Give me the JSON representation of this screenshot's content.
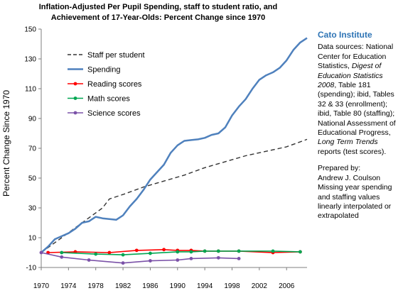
{
  "chart_data": {
    "type": "line",
    "title_lines": [
      "Inflation-Adjusted Per Pupil Spending, staff to student ratio, and",
      "Achievement of 17-Year-Olds:  Percent Change since 1970"
    ],
    "ylabel": "Percent Change Since 1970",
    "xlabel": "",
    "xlim": [
      1970,
      2009
    ],
    "ylim": [
      -10,
      150
    ],
    "x_ticks": [
      1970,
      1974,
      1978,
      1982,
      1986,
      1990,
      1994,
      1998,
      2002,
      2006
    ],
    "y_ticks": [
      -10,
      10,
      30,
      50,
      70,
      90,
      110,
      130,
      150
    ],
    "grid": false,
    "legend_placement": "top-left",
    "series": [
      {
        "name": "Staff per student",
        "color": "#333333",
        "dash": true,
        "marker": "none",
        "x": [
          1970,
          1973,
          1976,
          1979,
          1980,
          1982,
          1985,
          1988,
          1991,
          1994,
          1997,
          2000,
          2003,
          2006,
          2009
        ],
        "y": [
          0,
          10,
          20,
          30,
          36,
          39,
          44,
          48,
          52,
          57,
          61,
          65,
          68,
          71,
          76
        ]
      },
      {
        "name": "Spending",
        "color": "#4f81bd",
        "dash": false,
        "marker": "none",
        "x": [
          1970,
          1971,
          1972,
          1973,
          1974,
          1975,
          1976,
          1977,
          1978,
          1979,
          1980,
          1981,
          1982,
          1983,
          1984,
          1985,
          1986,
          1987,
          1988,
          1989,
          1990,
          1991,
          1992,
          1993,
          1994,
          1995,
          1996,
          1997,
          1998,
          1999,
          2000,
          2001,
          2002,
          2003,
          2004,
          2005,
          2006,
          2007,
          2008,
          2009
        ],
        "y": [
          0,
          4,
          9,
          11,
          13,
          16,
          20,
          21,
          24,
          23,
          22.5,
          22,
          25,
          31,
          36,
          42,
          49,
          54,
          59,
          67,
          72,
          75,
          75.5,
          76,
          77,
          79,
          80,
          84,
          92,
          98,
          103,
          110,
          116,
          119,
          121,
          124,
          129,
          136,
          141,
          144
        ]
      },
      {
        "name": "Reading scores",
        "color": "#ff0000",
        "dash": false,
        "marker": "circle",
        "x": [
          1971,
          1975,
          1980,
          1984,
          1988,
          1990,
          1992,
          1994,
          1996,
          1999,
          2004,
          2008
        ],
        "y": [
          0,
          0.5,
          0,
          1.5,
          2,
          1.5,
          1.5,
          1,
          1,
          1,
          0,
          0.5
        ]
      },
      {
        "name": "Math scores",
        "color": "#00a651",
        "dash": false,
        "marker": "circle",
        "x": [
          1973,
          1978,
          1982,
          1986,
          1990,
          1992,
          1994,
          1996,
          1999,
          2004,
          2008
        ],
        "y": [
          0,
          -1,
          -1.5,
          -0.5,
          0.5,
          0.5,
          1,
          1,
          1,
          1,
          0.5
        ]
      },
      {
        "name": "Science scores",
        "color": "#7b52a8",
        "dash": false,
        "marker": "circle",
        "x": [
          1970,
          1973,
          1977,
          1982,
          1986,
          1990,
          1992,
          1996,
          1999
        ],
        "y": [
          0,
          -3,
          -5,
          -7,
          -5.5,
          -5,
          -4,
          -3.5,
          -4
        ]
      }
    ]
  },
  "side_panel": {
    "institution": "Cato Institute",
    "sources_1": "Data sources: National Center for Education Statistics, ",
    "sources_2": "Digest of Education Statistics 2008",
    "sources_3": ", Table 181 (spending); ibid, Tables 32 & 33 (enrollment); ibid, Table 80 (staffing); National Assessment of Educational Progress, ",
    "sources_4": "Long Term Trends",
    "sources_5": " reports (test scores).",
    "prepared_by": "Prepared by:",
    "author": "Andrew J. Coulson",
    "note": "Missing year spending and staffing values linearly interpolated or extrapolated"
  },
  "colors": {
    "axis": "#7f7f7f",
    "text": "#000000",
    "institution": "#2e74b5"
  }
}
